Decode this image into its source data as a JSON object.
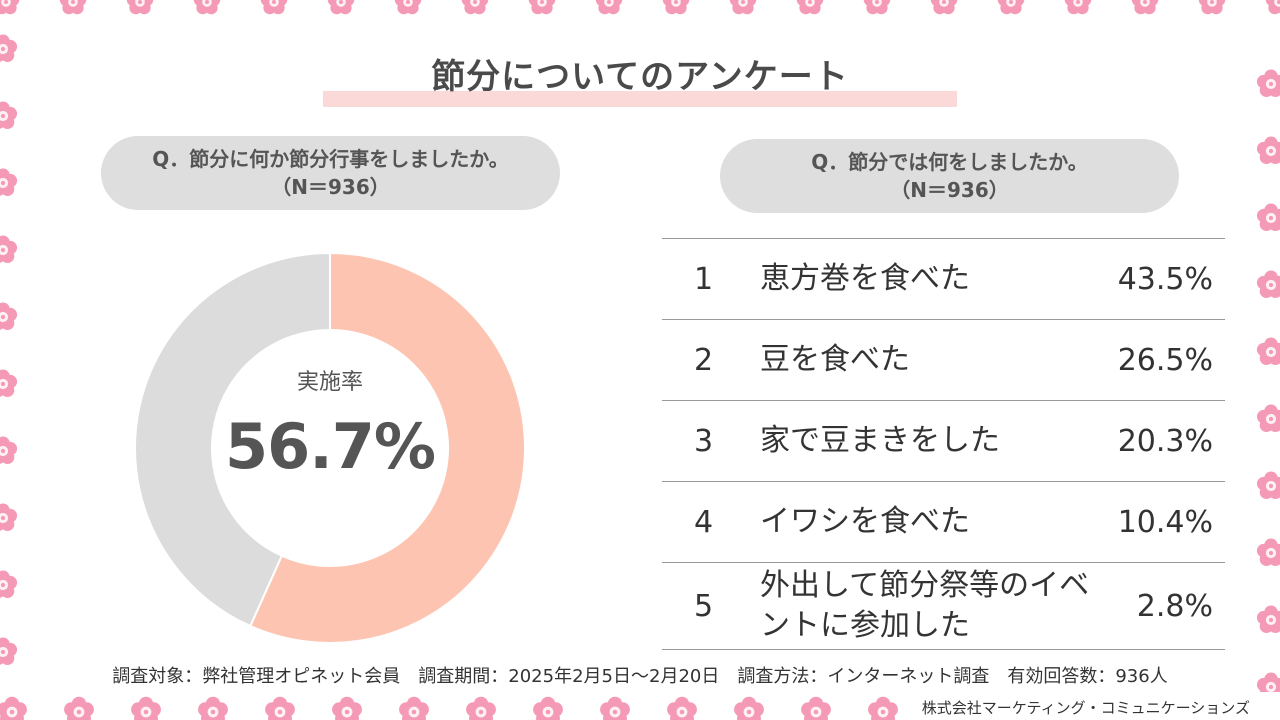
{
  "title": "節分についてのアンケート",
  "left_question": {
    "line1": "Q．節分に何か節分行事をしましたか。",
    "line2": "（N＝936）"
  },
  "right_question": {
    "line1": "Q．節分では何をしましたか。",
    "line2": "（N＝936）"
  },
  "chart_data": [
    {
      "type": "pie",
      "label": "実施率",
      "value_text": "56.7%",
      "values": [
        56.7,
        43.3
      ],
      "colors": [
        "#fdc4b2",
        "#dcdcdc"
      ]
    },
    {
      "type": "table",
      "rows": [
        {
          "rank": "1",
          "item": "恵方巻を食べた",
          "pct": "43.5%"
        },
        {
          "rank": "2",
          "item": "豆を食べた",
          "pct": "26.5%"
        },
        {
          "rank": "3",
          "item": "家で豆まきをした",
          "pct": "20.3%"
        },
        {
          "rank": "4",
          "item": "イワシを食べた",
          "pct": "10.4%"
        },
        {
          "rank": "5",
          "item": "外出して節分祭等のイベントに参加した",
          "pct": "2.8%"
        }
      ]
    }
  ],
  "footnote": "調査対象：弊社管理オピネット会員　調査期間：2025年2月5日～2月20日　調査方法：インターネット調査　有効回答数：936人",
  "company": "株式会社マーケティング・コミュニケーションズ",
  "colors": {
    "flower": "#f59ab6",
    "flower_center": "#ffffff",
    "title_bar": "#fbd9d9",
    "pill": "#dedede"
  },
  "icons": {
    "decoration": "plum-blossom-icon"
  }
}
